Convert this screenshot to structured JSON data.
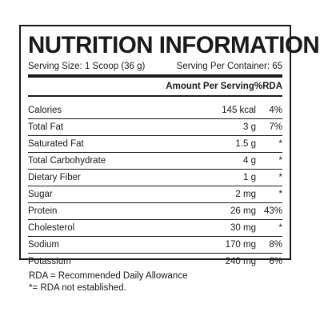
{
  "label": {
    "title": "NUTRITION INFORMATION",
    "serving_size": "Serving Size: 1 Scoop (36 g)",
    "servings_per_container": "Serving Per Container: 65",
    "header": {
      "name": "",
      "amount": "Amount Per Serving",
      "rda": "%RDA"
    },
    "nutrients": [
      {
        "name": "Calories",
        "amount": "145 kcal",
        "rda": "4%"
      },
      {
        "name": "Total Fat",
        "amount": "3 g",
        "rda": "7%"
      },
      {
        "name": "Saturated Fat",
        "amount": "1.5 g",
        "rda": "*"
      },
      {
        "name": "Total Carbohydrate",
        "amount": "4 g",
        "rda": "*"
      },
      {
        "name": "Dietary Fiber",
        "amount": "1 g",
        "rda": "*"
      },
      {
        "name": "Sugar",
        "amount": "2 mg",
        "rda": "*"
      },
      {
        "name": "Protein",
        "amount": "26 mg",
        "rda": "43%"
      },
      {
        "name": "Cholesterol",
        "amount": "30 mg",
        "rda": "*"
      },
      {
        "name": "Sodium",
        "amount": "170 mg",
        "rda": "8%"
      },
      {
        "name": "Potassium",
        "amount": "240 mg",
        "rda": "6%"
      }
    ]
  },
  "footnotes": {
    "line1": "RDA = Recommended Daily Allowance",
    "line2": "*= RDA not established."
  }
}
